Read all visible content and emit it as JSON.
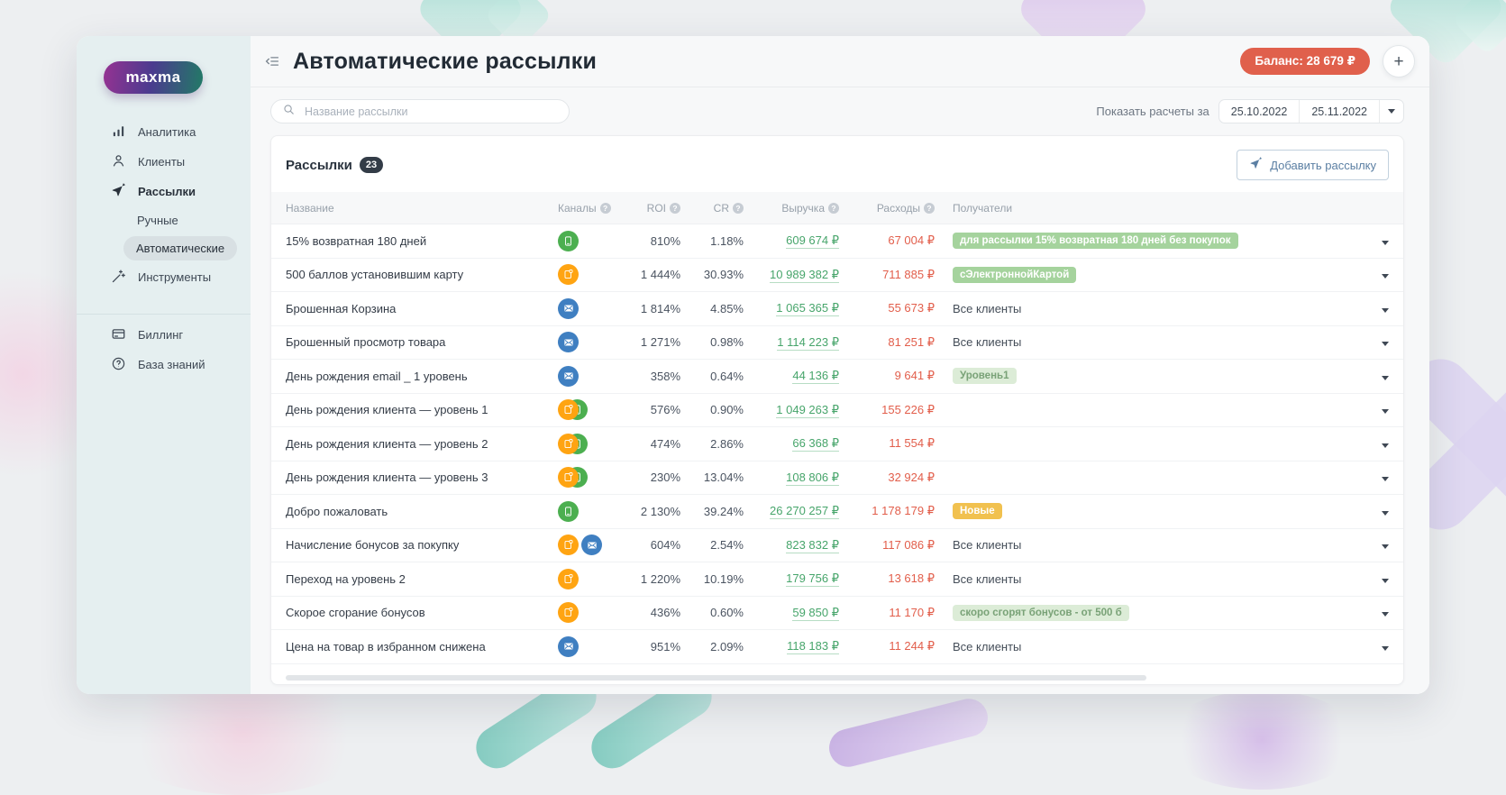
{
  "app": {
    "logo_text": "maxma"
  },
  "colors": {
    "sms": "#4caf50",
    "push": "#ffa412",
    "email": "#3f7fc1",
    "balance_badge": "#e0604c",
    "badge_solid_green": "#a5d39d",
    "badge_light_green": "#dcecd7",
    "badge_orange": "#f1c14f",
    "revenue_green": "#47a56b",
    "costs_red": "#e25e4b"
  },
  "icons": {
    "help_glyph": "?",
    "plus_glyph": "+"
  },
  "sidebar": {
    "items": [
      {
        "label": "Аналитика",
        "icon": "analytics-icon"
      },
      {
        "label": "Клиенты",
        "icon": "clients-icon"
      },
      {
        "label": "Рассылки",
        "icon": "send-icon",
        "children": [
          {
            "label": "Ручные",
            "selected": false
          },
          {
            "label": "Автоматические",
            "selected": true
          }
        ]
      },
      {
        "label": "Инструменты",
        "icon": "tools-icon"
      }
    ],
    "footer_items": [
      {
        "label": "Биллинг",
        "icon": "billing-icon"
      },
      {
        "label": "База знаний",
        "icon": "knowledge-base-icon"
      }
    ]
  },
  "header": {
    "title": "Автоматические рассылки",
    "balance": "Баланс: 28 679 ₽"
  },
  "filters": {
    "search_placeholder": "Название рассылки",
    "period_label": "Показать расчеты за",
    "date_from": "25.10.2022",
    "date_to": "25.11.2022"
  },
  "table": {
    "title": "Рассылки",
    "count": "23",
    "add_button": "Добавить рассылку",
    "columns": [
      {
        "label": "Название",
        "help": false
      },
      {
        "label": "Каналы",
        "help": true
      },
      {
        "label": "ROI",
        "help": true
      },
      {
        "label": "CR",
        "help": true
      },
      {
        "label": "Выручка",
        "help": true
      },
      {
        "label": "Расходы",
        "help": true
      },
      {
        "label": "Получатели",
        "help": false
      }
    ],
    "rows": [
      {
        "name": "15% возвратная 180 дней",
        "channels": [
          "sms"
        ],
        "stacked": false,
        "roi": "810%",
        "cr": "1.18%",
        "revenue": "609 674 ₽",
        "costs": "67 004 ₽",
        "recipients": {
          "style": "badge-solid",
          "label": "для рассылки 15% возвратная 180 дней без покупок"
        }
      },
      {
        "name": "500 баллов установившим карту",
        "channels": [
          "push"
        ],
        "stacked": false,
        "roi": "1 444%",
        "cr": "30.93%",
        "revenue": "10 989 382 ₽",
        "costs": "711 885 ₽",
        "recipients": {
          "style": "badge-solid",
          "label": "сЭлектроннойКартой"
        }
      },
      {
        "name": "Брошенная Корзина",
        "channels": [
          "email"
        ],
        "stacked": false,
        "roi": "1 814%",
        "cr": "4.85%",
        "revenue": "1 065 365 ₽",
        "costs": "55 673 ₽",
        "recipients": {
          "style": "text",
          "label": "Все клиенты"
        }
      },
      {
        "name": "Брошенный просмотр товара",
        "channels": [
          "email"
        ],
        "stacked": false,
        "roi": "1 271%",
        "cr": "0.98%",
        "revenue": "1 114 223 ₽",
        "costs": "81 251 ₽",
        "recipients": {
          "style": "text",
          "label": "Все клиенты"
        }
      },
      {
        "name": "День рождения email _ 1 уровень",
        "channels": [
          "email"
        ],
        "stacked": false,
        "roi": "358%",
        "cr": "0.64%",
        "revenue": "44 136 ₽",
        "costs": "9 641 ₽",
        "recipients": {
          "style": "badge-light",
          "label": "Уровень1"
        }
      },
      {
        "name": "День рождения клиента — уровень 1",
        "channels": [
          "push",
          "sms"
        ],
        "stacked": true,
        "roi": "576%",
        "cr": "0.90%",
        "revenue": "1 049 263 ₽",
        "costs": "155 226 ₽",
        "recipients": {
          "style": "none",
          "label": ""
        }
      },
      {
        "name": "День рождения клиента — уровень 2",
        "channels": [
          "push",
          "sms"
        ],
        "stacked": true,
        "roi": "474%",
        "cr": "2.86%",
        "revenue": "66 368 ₽",
        "costs": "11 554 ₽",
        "recipients": {
          "style": "none",
          "label": ""
        }
      },
      {
        "name": "День рождения клиента — уровень 3",
        "channels": [
          "push",
          "sms"
        ],
        "stacked": true,
        "roi": "230%",
        "cr": "13.04%",
        "revenue": "108 806 ₽",
        "costs": "32 924 ₽",
        "recipients": {
          "style": "none",
          "label": ""
        }
      },
      {
        "name": "Добро пожаловать",
        "channels": [
          "sms"
        ],
        "stacked": false,
        "roi": "2 130%",
        "cr": "39.24%",
        "revenue": "26 270 257 ₽",
        "costs": "1 178 179 ₽",
        "recipients": {
          "style": "badge-orange",
          "label": "Новые"
        }
      },
      {
        "name": "Начисление бонусов за покупку",
        "channels": [
          "push",
          "email"
        ],
        "stacked": false,
        "roi": "604%",
        "cr": "2.54%",
        "revenue": "823 832 ₽",
        "costs": "117 086 ₽",
        "recipients": {
          "style": "text",
          "label": "Все клиенты"
        }
      },
      {
        "name": "Переход на уровень 2",
        "channels": [
          "push"
        ],
        "stacked": false,
        "roi": "1 220%",
        "cr": "10.19%",
        "revenue": "179 756 ₽",
        "costs": "13 618 ₽",
        "recipients": {
          "style": "text",
          "label": "Все клиенты"
        }
      },
      {
        "name": "Скорое сгорание бонусов",
        "channels": [
          "push"
        ],
        "stacked": false,
        "roi": "436%",
        "cr": "0.60%",
        "revenue": "59 850 ₽",
        "costs": "11 170 ₽",
        "recipients": {
          "style": "badge-light",
          "label": "скоро сгорят бонусов - от 500 б"
        }
      },
      {
        "name": "Цена на товар в избранном снижена",
        "channels": [
          "email"
        ],
        "stacked": false,
        "roi": "951%",
        "cr": "2.09%",
        "revenue": "118 183 ₽",
        "costs": "11 244 ₽",
        "recipients": {
          "style": "text",
          "label": "Все клиенты"
        }
      }
    ]
  }
}
